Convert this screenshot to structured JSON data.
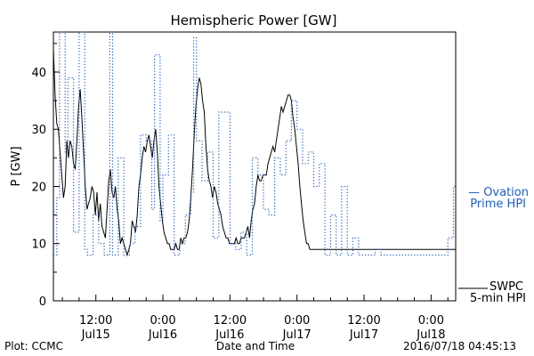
{
  "chart_data": {
    "type": "line",
    "title": "Hemispheric Power [GW]",
    "ylabel": "P [GW]",
    "xlabel": "Date and Time",
    "ylim": [
      0,
      47
    ],
    "yticks": [
      0,
      10,
      20,
      30,
      40
    ],
    "x_unit": "hours since 2016/07/14 00:00 UT",
    "xlim": [
      4.4,
      76.4
    ],
    "xticks": [
      {
        "x": 12,
        "time": "12:00",
        "date": "Jul15"
      },
      {
        "x": 24,
        "time": "0:00",
        "date": "Jul16"
      },
      {
        "x": 36,
        "time": "12:00",
        "date": "Jul16"
      },
      {
        "x": 48,
        "time": "0:00",
        "date": "Jul17"
      },
      {
        "x": 60,
        "time": "12:00",
        "date": "Jul17"
      },
      {
        "x": 72,
        "time": "0:00",
        "date": "Jul18"
      }
    ],
    "series": [
      {
        "name": "SWPC 5-min HPI",
        "label_line1": "SWPC",
        "label_line2": "5-min HPI",
        "color": "#000000",
        "style": "solid",
        "points": [
          [
            4.4,
            44
          ],
          [
            4.7,
            36
          ],
          [
            5.0,
            31
          ],
          [
            5.3,
            30
          ],
          [
            5.6,
            26
          ],
          [
            5.9,
            22
          ],
          [
            6.2,
            18
          ],
          [
            6.5,
            20
          ],
          [
            6.8,
            28
          ],
          [
            7.1,
            25
          ],
          [
            7.4,
            28
          ],
          [
            7.7,
            27
          ],
          [
            8.0,
            24
          ],
          [
            8.3,
            23
          ],
          [
            8.6,
            28
          ],
          [
            8.9,
            34
          ],
          [
            9.2,
            37
          ],
          [
            9.5,
            32
          ],
          [
            9.8,
            26
          ],
          [
            10.1,
            20
          ],
          [
            10.4,
            16
          ],
          [
            10.7,
            17
          ],
          [
            11.0,
            18
          ],
          [
            11.3,
            20
          ],
          [
            11.6,
            19
          ],
          [
            11.9,
            15
          ],
          [
            12.2,
            19
          ],
          [
            12.5,
            14
          ],
          [
            12.8,
            17
          ],
          [
            13.1,
            13
          ],
          [
            13.4,
            12
          ],
          [
            13.7,
            11
          ],
          [
            14.0,
            16
          ],
          [
            14.3,
            21
          ],
          [
            14.6,
            23
          ],
          [
            14.9,
            19
          ],
          [
            15.2,
            18
          ],
          [
            15.5,
            20
          ],
          [
            15.8,
            16
          ],
          [
            16.1,
            14
          ],
          [
            16.4,
            10
          ],
          [
            16.7,
            11
          ],
          [
            17.0,
            10
          ],
          [
            17.3,
            9
          ],
          [
            17.6,
            8
          ],
          [
            17.9,
            9
          ],
          [
            18.2,
            10
          ],
          [
            18.5,
            14
          ],
          [
            18.8,
            13
          ],
          [
            19.1,
            12
          ],
          [
            19.4,
            15
          ],
          [
            19.7,
            20
          ],
          [
            20.0,
            22
          ],
          [
            20.3,
            25
          ],
          [
            20.6,
            27
          ],
          [
            20.9,
            26
          ],
          [
            21.2,
            28
          ],
          [
            21.5,
            29
          ],
          [
            21.8,
            27
          ],
          [
            22.1,
            25
          ],
          [
            22.4,
            28
          ],
          [
            22.7,
            30
          ],
          [
            23.0,
            26
          ],
          [
            23.3,
            20
          ],
          [
            23.6,
            17
          ],
          [
            23.9,
            14
          ],
          [
            24.2,
            12
          ],
          [
            24.5,
            11
          ],
          [
            24.8,
            10
          ],
          [
            25.1,
            10
          ],
          [
            25.4,
            9
          ],
          [
            25.7,
            9
          ],
          [
            26.0,
            9
          ],
          [
            26.3,
            10
          ],
          [
            26.6,
            9
          ],
          [
            26.9,
            9
          ],
          [
            27.2,
            11
          ],
          [
            27.5,
            10
          ],
          [
            27.8,
            11
          ],
          [
            28.1,
            11
          ],
          [
            28.4,
            12
          ],
          [
            28.7,
            14
          ],
          [
            29.0,
            18
          ],
          [
            29.3,
            23
          ],
          [
            29.6,
            29
          ],
          [
            29.9,
            34
          ],
          [
            30.2,
            37
          ],
          [
            30.5,
            39
          ],
          [
            30.8,
            38
          ],
          [
            31.1,
            35
          ],
          [
            31.4,
            33
          ],
          [
            31.7,
            27
          ],
          [
            32.0,
            23
          ],
          [
            32.3,
            21
          ],
          [
            32.6,
            20
          ],
          [
            32.9,
            18
          ],
          [
            33.2,
            20
          ],
          [
            33.5,
            19
          ],
          [
            33.8,
            17
          ],
          [
            34.1,
            16
          ],
          [
            34.4,
            15
          ],
          [
            34.7,
            13
          ],
          [
            35.0,
            12
          ],
          [
            35.3,
            11
          ],
          [
            35.6,
            11
          ],
          [
            35.9,
            10
          ],
          [
            36.2,
            10
          ],
          [
            36.5,
            10
          ],
          [
            36.8,
            10
          ],
          [
            37.1,
            11
          ],
          [
            37.4,
            10
          ],
          [
            37.7,
            10
          ],
          [
            38.0,
            11
          ],
          [
            38.3,
            11
          ],
          [
            38.6,
            11
          ],
          [
            38.9,
            12
          ],
          [
            39.2,
            13
          ],
          [
            39.5,
            11
          ],
          [
            39.8,
            14
          ],
          [
            40.1,
            16
          ],
          [
            40.4,
            17
          ],
          [
            40.7,
            20
          ],
          [
            41.0,
            22
          ],
          [
            41.3,
            21
          ],
          [
            41.6,
            21
          ],
          [
            41.9,
            22
          ],
          [
            42.2,
            22
          ],
          [
            42.5,
            22
          ],
          [
            42.8,
            24
          ],
          [
            43.1,
            25
          ],
          [
            43.4,
            26
          ],
          [
            43.7,
            27
          ],
          [
            44.0,
            26
          ],
          [
            44.3,
            28
          ],
          [
            44.6,
            30
          ],
          [
            44.9,
            32
          ],
          [
            45.2,
            34
          ],
          [
            45.5,
            33
          ],
          [
            45.8,
            34
          ],
          [
            46.1,
            35
          ],
          [
            46.4,
            36
          ],
          [
            46.7,
            36
          ],
          [
            47.0,
            35
          ],
          [
            47.3,
            32
          ],
          [
            47.6,
            30
          ],
          [
            47.9,
            27
          ],
          [
            48.2,
            24
          ],
          [
            48.5,
            20
          ],
          [
            48.8,
            17
          ],
          [
            49.1,
            14
          ],
          [
            49.4,
            12
          ],
          [
            49.7,
            10
          ],
          [
            50.0,
            10
          ],
          [
            50.3,
            9
          ],
          [
            50.6,
            9
          ],
          [
            50.9,
            9
          ],
          [
            51.2,
            9
          ],
          [
            51.5,
            9
          ],
          [
            51.8,
            9
          ],
          [
            52.1,
            9
          ],
          [
            52.4,
            9
          ],
          [
            52.7,
            9
          ],
          [
            53.0,
            9
          ],
          [
            53.3,
            9
          ],
          [
            53.6,
            9
          ],
          [
            53.9,
            9
          ],
          [
            54.2,
            9
          ],
          [
            54.5,
            9
          ],
          [
            54.8,
            9
          ],
          [
            55.1,
            9
          ],
          [
            55.4,
            9
          ],
          [
            55.7,
            9
          ],
          [
            56.0,
            9
          ],
          [
            56.3,
            9
          ],
          [
            56.6,
            9
          ],
          [
            56.9,
            9
          ],
          [
            57.2,
            9
          ],
          [
            57.5,
            9
          ],
          [
            57.8,
            9
          ],
          [
            58.1,
            9
          ],
          [
            58.4,
            9
          ],
          [
            58.7,
            9
          ],
          [
            59.0,
            9
          ],
          [
            59.3,
            9
          ],
          [
            59.6,
            9
          ],
          [
            59.9,
            9
          ],
          [
            60.2,
            9
          ],
          [
            60.5,
            9
          ],
          [
            60.8,
            9
          ],
          [
            61.1,
            9
          ],
          [
            61.4,
            9
          ],
          [
            61.7,
            9
          ],
          [
            62.0,
            9
          ],
          [
            62.3,
            9
          ],
          [
            62.6,
            9
          ],
          [
            62.9,
            9
          ],
          [
            63.2,
            9
          ],
          [
            63.5,
            9
          ],
          [
            63.8,
            9
          ],
          [
            64.1,
            9
          ],
          [
            64.4,
            9
          ],
          [
            64.7,
            9
          ],
          [
            65.0,
            9
          ],
          [
            65.3,
            9
          ],
          [
            65.6,
            9
          ],
          [
            65.9,
            9
          ],
          [
            66.2,
            9
          ],
          [
            66.5,
            9
          ],
          [
            66.8,
            9
          ],
          [
            67.1,
            9
          ],
          [
            67.4,
            9
          ],
          [
            67.7,
            9
          ],
          [
            68.0,
            9
          ],
          [
            68.3,
            9
          ],
          [
            68.6,
            9
          ],
          [
            68.9,
            9
          ],
          [
            69.2,
            9
          ],
          [
            69.5,
            9
          ],
          [
            69.8,
            9
          ],
          [
            70.1,
            9
          ],
          [
            70.4,
            9
          ],
          [
            70.7,
            9
          ],
          [
            71.0,
            9
          ],
          [
            71.3,
            9
          ],
          [
            71.6,
            9
          ],
          [
            71.9,
            9
          ],
          [
            72.2,
            9
          ],
          [
            72.5,
            9
          ],
          [
            72.8,
            9
          ],
          [
            73.1,
            9
          ],
          [
            73.4,
            9
          ],
          [
            73.7,
            9
          ],
          [
            74.0,
            9
          ],
          [
            74.3,
            9
          ],
          [
            74.6,
            9
          ],
          [
            74.9,
            9
          ],
          [
            75.2,
            9
          ],
          [
            75.5,
            9
          ],
          [
            75.8,
            9
          ],
          [
            76.1,
            9
          ],
          [
            76.4,
            9
          ]
        ]
      },
      {
        "name": "Ovation Prime HPI",
        "label_line1": "— Ovation",
        "label_line2": "Prime HPI",
        "color": "#1f5fc4",
        "style": "dotted-step",
        "points": [
          [
            4.4,
            8
          ],
          [
            5.0,
            18
          ],
          [
            5.5,
            47
          ],
          [
            6.5,
            26
          ],
          [
            7.0,
            39
          ],
          [
            8.0,
            12
          ],
          [
            9.0,
            47
          ],
          [
            10.0,
            9
          ],
          [
            10.5,
            8
          ],
          [
            11.5,
            15
          ],
          [
            12.5,
            10
          ],
          [
            13.5,
            8
          ],
          [
            14.5,
            47
          ],
          [
            15.0,
            8
          ],
          [
            16.0,
            25
          ],
          [
            17.0,
            8
          ],
          [
            18.0,
            10
          ],
          [
            19.0,
            13
          ],
          [
            20.0,
            29
          ],
          [
            21.0,
            28
          ],
          [
            22.0,
            16
          ],
          [
            22.5,
            43
          ],
          [
            23.5,
            14
          ],
          [
            24.0,
            22
          ],
          [
            25.0,
            29
          ],
          [
            26.0,
            8
          ],
          [
            27.0,
            10
          ],
          [
            28.0,
            15
          ],
          [
            29.0,
            19
          ],
          [
            29.5,
            46
          ],
          [
            30.0,
            28
          ],
          [
            31.0,
            21
          ],
          [
            32.0,
            26
          ],
          [
            33.0,
            11
          ],
          [
            34.0,
            33
          ],
          [
            36.0,
            10
          ],
          [
            37.0,
            9
          ],
          [
            38.0,
            12
          ],
          [
            39.0,
            8
          ],
          [
            40.0,
            25
          ],
          [
            41.0,
            22
          ],
          [
            42.0,
            16
          ],
          [
            43.0,
            15
          ],
          [
            44.0,
            25
          ],
          [
            45.0,
            22
          ],
          [
            46.0,
            28
          ],
          [
            47.0,
            35
          ],
          [
            48.0,
            30
          ],
          [
            49.0,
            24
          ],
          [
            50.0,
            26
          ],
          [
            51.0,
            20
          ],
          [
            52.0,
            24
          ],
          [
            53.0,
            8
          ],
          [
            54.0,
            15
          ],
          [
            55.0,
            8
          ],
          [
            56.0,
            20
          ],
          [
            57.0,
            8
          ],
          [
            58.0,
            11
          ],
          [
            59.0,
            8
          ],
          [
            60.0,
            8
          ],
          [
            61.0,
            8
          ],
          [
            62.0,
            9
          ],
          [
            63.0,
            8
          ],
          [
            64.0,
            8
          ],
          [
            65.0,
            8
          ],
          [
            66.0,
            8
          ],
          [
            67.0,
            8
          ],
          [
            68.0,
            8
          ],
          [
            69.0,
            8
          ],
          [
            70.0,
            8
          ],
          [
            71.0,
            8
          ],
          [
            72.0,
            8
          ],
          [
            73.0,
            8
          ],
          [
            74.0,
            8
          ],
          [
            75.0,
            11
          ],
          [
            76.0,
            20
          ],
          [
            76.4,
            20
          ]
        ]
      }
    ],
    "grid": false,
    "legend_position": "right"
  },
  "footer": {
    "plot_credit": "Plot: CCMC",
    "timestamp": "2016/07/18 04:45:13"
  }
}
